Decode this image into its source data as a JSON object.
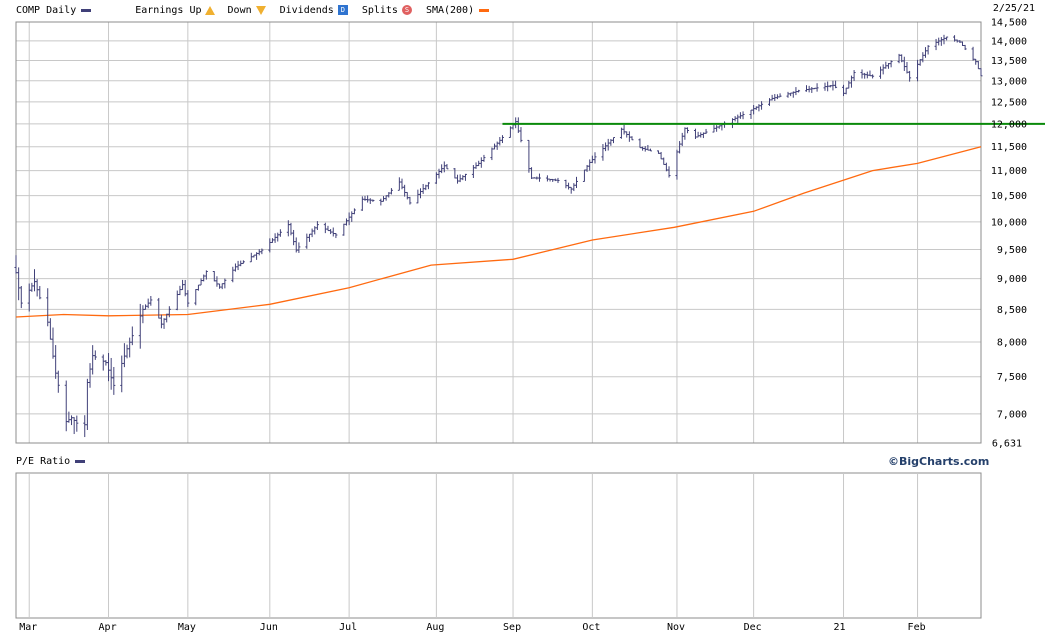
{
  "legend": {
    "symbol": "COMP",
    "period": "Daily",
    "earnings_label": "Earnings",
    "up_label": "Up",
    "down_label": "Down",
    "dividends_label": "Dividends",
    "dividends_badge": "D",
    "splits_label": "Splits",
    "splits_badge": "S",
    "sma_label": "SMA(200)"
  },
  "date_label": "2/25/21",
  "lower_panel": {
    "title": "P/E Ratio",
    "brand": "©BigCharts.com"
  },
  "colors": {
    "price": "#404078",
    "sma": "#ff6a10",
    "reference_line": "#0a8a0a",
    "grid": "#c8c8c8",
    "border": "#8c8c8c",
    "earnings_up": "#f0b030",
    "dividends": "#2f74d0",
    "splits": "#e06060"
  },
  "chart_data": {
    "type": "ohlc",
    "title": "COMP Daily",
    "y_scale": "log",
    "ylim": [
      6631,
      14500
    ],
    "y_ticks": [
      7000,
      7500,
      8000,
      8500,
      9000,
      9500,
      10000,
      10500,
      11000,
      11500,
      12000,
      12500,
      13000,
      13500,
      14000,
      14500
    ],
    "y_tick_labels": [
      "7,000",
      "7,500",
      "8,000",
      "8,500",
      "9,000",
      "9,500",
      "10,000",
      "10,500",
      "11,000",
      "11,500",
      "12,000",
      "12,500",
      "13,000",
      "13,500",
      "14,000",
      "14,500"
    ],
    "y_min_label": "6,631",
    "x_tick_labels": [
      "Mar",
      "Apr",
      "May",
      "Jun",
      "Jul",
      "Aug",
      "Sep",
      "Oct",
      "Nov",
      "Dec",
      "21",
      "Feb"
    ],
    "x_tick_dates": [
      "2020-03-02",
      "2020-04-01",
      "2020-05-01",
      "2020-06-01",
      "2020-07-01",
      "2020-08-03",
      "2020-09-01",
      "2020-10-01",
      "2020-11-02",
      "2020-12-01",
      "2021-01-04",
      "2021-02-01"
    ],
    "x_range": [
      "2020-02-26",
      "2021-02-25"
    ],
    "reference_line": {
      "value": 12000,
      "start": "2020-08-28",
      "end": "2021-02-25"
    },
    "price_path": [
      [
        "2020-02-26",
        9100
      ],
      [
        "2020-02-28",
        8600
      ],
      [
        "2020-03-04",
        8950
      ],
      [
        "2020-03-09",
        8300
      ],
      [
        "2020-03-12",
        7550
      ],
      [
        "2020-03-16",
        6900
      ],
      [
        "2020-03-18",
        6950
      ],
      [
        "2020-03-20",
        6880
      ],
      [
        "2020-03-23",
        6860
      ],
      [
        "2020-03-24",
        7420
      ],
      [
        "2020-03-26",
        7800
      ],
      [
        "2020-03-31",
        7700
      ],
      [
        "2020-04-03",
        7380
      ],
      [
        "2020-04-08",
        7900
      ],
      [
        "2020-04-14",
        8500
      ],
      [
        "2020-04-17",
        8650
      ],
      [
        "2020-04-21",
        8270
      ],
      [
        "2020-04-29",
        8900
      ],
      [
        "2020-05-01",
        8600
      ],
      [
        "2020-05-08",
        9120
      ],
      [
        "2020-05-13",
        8860
      ],
      [
        "2020-05-19",
        9200
      ],
      [
        "2020-05-29",
        9490
      ],
      [
        "2020-06-08",
        9950
      ],
      [
        "2020-06-11",
        9490
      ],
      [
        "2020-06-19",
        9950
      ],
      [
        "2020-06-26",
        9760
      ],
      [
        "2020-07-06",
        10430
      ],
      [
        "2020-07-13",
        10390
      ],
      [
        "2020-07-20",
        10770
      ],
      [
        "2020-07-24",
        10360
      ],
      [
        "2020-07-31",
        10750
      ],
      [
        "2020-08-06",
        11100
      ],
      [
        "2020-08-11",
        10790
      ],
      [
        "2020-08-19",
        11150
      ],
      [
        "2020-08-28",
        11700
      ],
      [
        "2020-09-02",
        12050
      ],
      [
        "2020-09-08",
        10850
      ],
      [
        "2020-09-11",
        10850
      ],
      [
        "2020-09-18",
        10800
      ],
      [
        "2020-09-23",
        10630
      ],
      [
        "2020-09-30",
        11170
      ],
      [
        "2020-10-12",
        11880
      ],
      [
        "2020-10-19",
        11480
      ],
      [
        "2020-10-26",
        11360
      ],
      [
        "2020-10-30",
        10900
      ],
      [
        "2020-11-05",
        11900
      ],
      [
        "2020-11-09",
        11710
      ],
      [
        "2020-11-16",
        11900
      ],
      [
        "2020-11-27",
        12210
      ],
      [
        "2020-12-08",
        12580
      ],
      [
        "2020-12-18",
        12760
      ],
      [
        "2020-12-31",
        12890
      ],
      [
        "2021-01-04",
        12700
      ],
      [
        "2021-01-08",
        13200
      ],
      [
        "2021-01-15",
        13110
      ],
      [
        "2021-01-25",
        13630
      ],
      [
        "2021-01-29",
        13070
      ],
      [
        "2021-02-05",
        13860
      ],
      [
        "2021-02-12",
        14100
      ],
      [
        "2021-02-17",
        13970
      ],
      [
        "2021-02-22",
        13530
      ],
      [
        "2021-02-23",
        13470
      ],
      [
        "2021-02-25",
        13120
      ]
    ],
    "series": [
      {
        "name": "SMA(200)",
        "points": [
          [
            "2020-02-26",
            8380
          ],
          [
            "2020-03-15",
            8420
          ],
          [
            "2020-04-01",
            8400
          ],
          [
            "2020-05-01",
            8420
          ],
          [
            "2020-06-01",
            8580
          ],
          [
            "2020-07-01",
            8850
          ],
          [
            "2020-08-01",
            9230
          ],
          [
            "2020-09-01",
            9330
          ],
          [
            "2020-10-01",
            9670
          ],
          [
            "2020-11-01",
            9900
          ],
          [
            "2020-12-01",
            10200
          ],
          [
            "2020-12-20",
            10550
          ],
          [
            "2021-01-15",
            11000
          ],
          [
            "2021-02-01",
            11150
          ],
          [
            "2021-02-25",
            11500
          ]
        ]
      }
    ]
  }
}
